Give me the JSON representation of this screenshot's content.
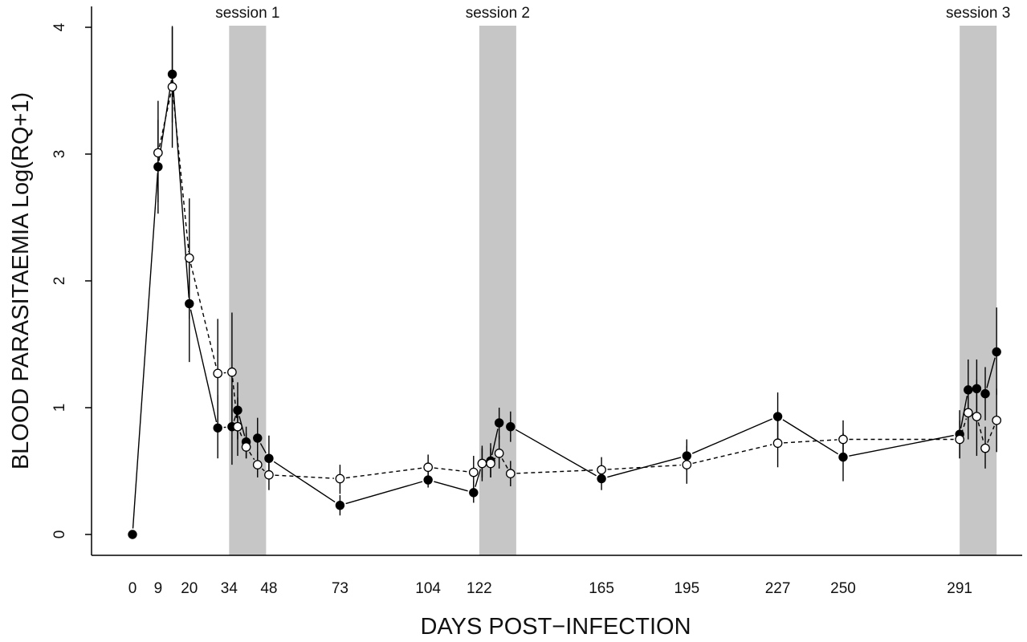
{
  "chart_data": {
    "type": "line",
    "title": "",
    "xlabel": "DAYS POST−INFECTION",
    "ylabel": "BLOOD PARASITAEMIA Log(RQ+1)",
    "xlim": [
      0,
      301
    ],
    "ylim": [
      0,
      4
    ],
    "grid": false,
    "legend": "none",
    "x_ticks": [
      0,
      9,
      20,
      34,
      48,
      73,
      104,
      122,
      165,
      195,
      227,
      250,
      291
    ],
    "y_ticks": [
      0,
      1,
      2,
      3,
      4
    ],
    "sessions": [
      {
        "label": "session 1",
        "x_start": 34,
        "x_end": 47
      },
      {
        "label": "session 2",
        "x_start": 122,
        "x_end": 135
      },
      {
        "label": "session 3",
        "x_start": 291,
        "x_end": 304
      }
    ],
    "series": [
      {
        "marker": "filled-circle",
        "line": "solid",
        "color": "#000000",
        "points": [
          {
            "x": 0,
            "y": 0.0
          },
          {
            "x": 9,
            "y": 2.9,
            "lo": 2.53,
            "hi": 3.27
          },
          {
            "x": 14,
            "y": 3.63,
            "lo": 3.25,
            "hi": 4.01
          },
          {
            "x": 20,
            "y": 1.82,
            "lo": 1.36,
            "hi": 2.28
          },
          {
            "x": 30,
            "y": 0.84,
            "lo": 0.6,
            "hi": 1.1
          },
          {
            "x": 35,
            "y": 0.85,
            "lo": 0.55,
            "hi": 1.15
          },
          {
            "x": 37,
            "y": 0.98,
            "lo": 0.75,
            "hi": 1.2
          },
          {
            "x": 40,
            "y": 0.73,
            "lo": 0.6,
            "hi": 0.85
          },
          {
            "x": 44,
            "y": 0.76,
            "lo": 0.6,
            "hi": 0.92
          },
          {
            "x": 48,
            "y": 0.6,
            "lo": 0.45,
            "hi": 0.78
          },
          {
            "x": 73,
            "y": 0.23,
            "lo": 0.15,
            "hi": 0.31
          },
          {
            "x": 104,
            "y": 0.43,
            "lo": 0.37,
            "hi": 0.5
          },
          {
            "x": 120,
            "y": 0.33,
            "lo": 0.25,
            "hi": 0.42
          },
          {
            "x": 123,
            "y": 0.56,
            "lo": 0.42,
            "hi": 0.7
          },
          {
            "x": 126,
            "y": 0.58,
            "lo": 0.45,
            "hi": 0.72
          },
          {
            "x": 129,
            "y": 0.88,
            "lo": 0.75,
            "hi": 1.0
          },
          {
            "x": 133,
            "y": 0.85,
            "lo": 0.73,
            "hi": 0.97
          },
          {
            "x": 165,
            "y": 0.44,
            "lo": 0.35,
            "hi": 0.52
          },
          {
            "x": 195,
            "y": 0.62,
            "lo": 0.5,
            "hi": 0.75
          },
          {
            "x": 227,
            "y": 0.93,
            "lo": 0.75,
            "hi": 1.12
          },
          {
            "x": 250,
            "y": 0.61,
            "lo": 0.42,
            "hi": 0.8
          },
          {
            "x": 291,
            "y": 0.79,
            "lo": 0.6,
            "hi": 0.98
          },
          {
            "x": 294,
            "y": 1.14,
            "lo": 0.9,
            "hi": 1.38
          },
          {
            "x": 297,
            "y": 1.15,
            "lo": 0.92,
            "hi": 1.38
          },
          {
            "x": 300,
            "y": 1.11,
            "lo": 0.9,
            "hi": 1.32
          },
          {
            "x": 304,
            "y": 1.44,
            "lo": 1.1,
            "hi": 1.79
          }
        ]
      },
      {
        "marker": "open-circle",
        "line": "dashed",
        "color": "#000000",
        "points": [
          {
            "x": 9,
            "y": 3.01,
            "lo": 2.62,
            "hi": 3.42
          },
          {
            "x": 14,
            "y": 3.53,
            "lo": 3.05,
            "hi": 4.0
          },
          {
            "x": 20,
            "y": 2.18,
            "lo": 1.7,
            "hi": 2.65
          },
          {
            "x": 30,
            "y": 1.27,
            "lo": 0.85,
            "hi": 1.7
          },
          {
            "x": 35,
            "y": 1.28,
            "lo": 0.82,
            "hi": 1.75
          },
          {
            "x": 37,
            "y": 0.85,
            "lo": 0.62,
            "hi": 1.08
          },
          {
            "x": 40,
            "y": 0.69,
            "lo": 0.6,
            "hi": 0.8
          },
          {
            "x": 44,
            "y": 0.55,
            "lo": 0.45,
            "hi": 0.65
          },
          {
            "x": 48,
            "y": 0.47,
            "lo": 0.35,
            "hi": 0.58
          },
          {
            "x": 73,
            "y": 0.44,
            "lo": 0.32,
            "hi": 0.55
          },
          {
            "x": 104,
            "y": 0.53,
            "lo": 0.45,
            "hi": 0.63
          },
          {
            "x": 120,
            "y": 0.49,
            "lo": 0.35,
            "hi": 0.62
          },
          {
            "x": 123,
            "y": 0.56,
            "lo": 0.45,
            "hi": 0.68
          },
          {
            "x": 126,
            "y": 0.56,
            "lo": 0.45,
            "hi": 0.68
          },
          {
            "x": 129,
            "y": 0.64,
            "lo": 0.52,
            "hi": 0.78
          },
          {
            "x": 133,
            "y": 0.48,
            "lo": 0.38,
            "hi": 0.58
          },
          {
            "x": 165,
            "y": 0.51,
            "lo": 0.42,
            "hi": 0.61
          },
          {
            "x": 195,
            "y": 0.55,
            "lo": 0.4,
            "hi": 0.7
          },
          {
            "x": 227,
            "y": 0.72,
            "lo": 0.53,
            "hi": 0.9
          },
          {
            "x": 250,
            "y": 0.75,
            "lo": 0.58,
            "hi": 0.9
          },
          {
            "x": 291,
            "y": 0.75,
            "lo": 0.6,
            "hi": 0.9
          },
          {
            "x": 294,
            "y": 0.96,
            "lo": 0.75,
            "hi": 1.18
          },
          {
            "x": 297,
            "y": 0.93,
            "lo": 0.62,
            "hi": 1.22
          },
          {
            "x": 300,
            "y": 0.68,
            "lo": 0.52,
            "hi": 0.85
          },
          {
            "x": 304,
            "y": 0.9,
            "lo": 0.65,
            "hi": 1.15
          }
        ]
      }
    ]
  }
}
